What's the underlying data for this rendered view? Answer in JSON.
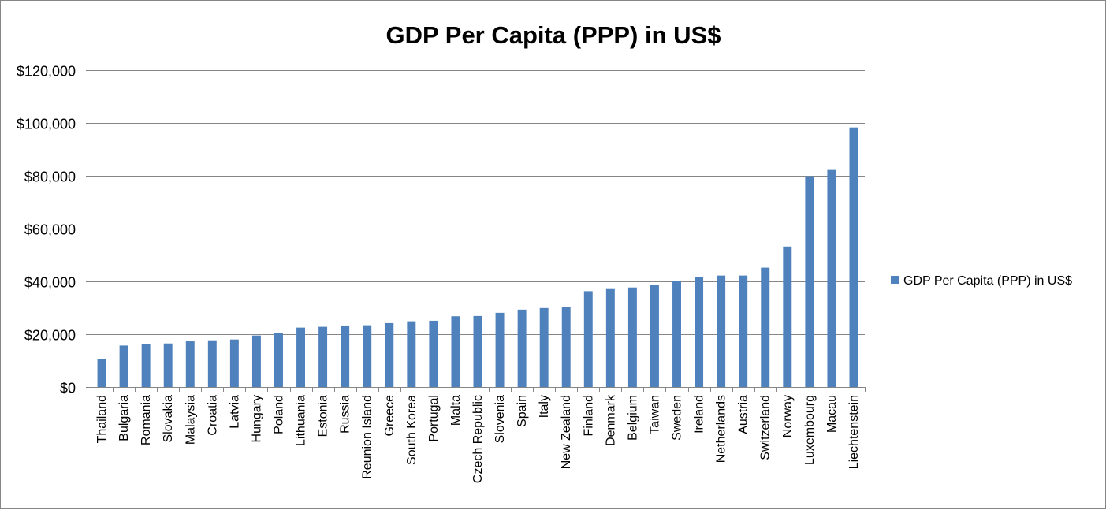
{
  "chart_data": {
    "type": "bar",
    "title": "GDP Per Capita (PPP) in US$",
    "xlabel": "",
    "ylabel": "",
    "ylim": [
      0,
      120000
    ],
    "yticks": [
      0,
      20000,
      40000,
      60000,
      80000,
      100000,
      120000
    ],
    "ytick_labels": [
      "$0",
      "$20,000",
      "$40,000",
      "$60,000",
      "$80,000",
      "$100,000",
      "$120,000"
    ],
    "grid": true,
    "legend_position": "right",
    "categories": [
      "Thailand",
      "Bulgaria",
      "Romania",
      "Slovakia",
      "Malaysia",
      "Croatia",
      "Latvia",
      "Hungary",
      "Poland",
      "Lithuania",
      "Estonia",
      "Russia",
      "Reunion Island",
      "Greece",
      "South Korea",
      "Portugal",
      "Malta",
      "Czech Republic",
      "Slovenia",
      "Spain",
      "Italy",
      "New Zealand",
      "Finland",
      "Denmark",
      "Belgium",
      "Taiwan",
      "Sweden",
      "Ireland",
      "Netherlands",
      "Austria",
      "Switzerland",
      "Norway",
      "Luxembourg",
      "Macau",
      "Liechtenstein"
    ],
    "series": [
      {
        "name": "GDP Per Capita (PPP) in US$",
        "color": "#4f81bd",
        "values": [
          10500,
          15700,
          16300,
          16500,
          17300,
          17700,
          18000,
          19500,
          20600,
          22500,
          22800,
          23300,
          23400,
          24200,
          24900,
          25100,
          26800,
          26900,
          28100,
          29300,
          29900,
          30400,
          36300,
          37400,
          37700,
          38600,
          40100,
          41700,
          42200,
          42200,
          45200,
          53200,
          79800,
          82200,
          98300
        ]
      }
    ]
  }
}
